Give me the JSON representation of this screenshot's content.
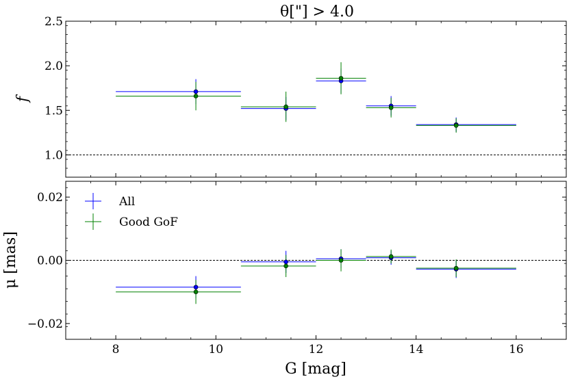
{
  "chart_data": {
    "type": "scatter",
    "title": "θ[\"] > 4.0",
    "xlabel": "G [mag]",
    "xlim": [
      7,
      17
    ],
    "xticks": [
      "8",
      "10",
      "12",
      "14",
      "16"
    ],
    "colors": {
      "All": "#0000ff",
      "Good GoF": "#008000",
      "reference": "#000000"
    },
    "panels": [
      {
        "id": "top",
        "ylabel": "f",
        "ylim": [
          0.75,
          2.5
        ],
        "yticks": [
          "1.0",
          "1.5",
          "2.0",
          "2.5"
        ],
        "reference_line": 1.0,
        "series": [
          {
            "name": "All",
            "points": [
              {
                "x": 9.6,
                "xerr": [
                  8.0,
                  10.5
                ],
                "y": 1.71,
                "yerr": 0.14
              },
              {
                "x": 11.4,
                "xerr": [
                  10.5,
                  12.0
                ],
                "y": 1.52,
                "yerr": 0.13
              },
              {
                "x": 12.5,
                "xerr": [
                  12.0,
                  13.0
                ],
                "y": 1.83,
                "yerr": 0.14
              },
              {
                "x": 13.5,
                "xerr": [
                  13.0,
                  14.0
                ],
                "y": 1.55,
                "yerr": 0.11
              },
              {
                "x": 14.8,
                "xerr": [
                  14.0,
                  16.0
                ],
                "y": 1.34,
                "yerr": 0.08
              }
            ]
          },
          {
            "name": "Good GoF",
            "points": [
              {
                "x": 9.6,
                "xerr": [
                  8.0,
                  10.5
                ],
                "y": 1.66,
                "yerr": 0.16
              },
              {
                "x": 11.4,
                "xerr": [
                  10.5,
                  12.0
                ],
                "y": 1.54,
                "yerr": 0.17
              },
              {
                "x": 12.5,
                "xerr": [
                  12.0,
                  13.0
                ],
                "y": 1.86,
                "yerr": 0.18
              },
              {
                "x": 13.5,
                "xerr": [
                  13.0,
                  14.0
                ],
                "y": 1.53,
                "yerr": 0.11
              },
              {
                "x": 14.8,
                "xerr": [
                  14.0,
                  16.0
                ],
                "y": 1.33,
                "yerr": 0.08
              }
            ]
          }
        ]
      },
      {
        "id": "bottom",
        "ylabel": "μ [mas]",
        "ylim": [
          -0.025,
          0.025
        ],
        "yticks": [
          "−0.02",
          "0.00",
          "0.02"
        ],
        "ytick_values": [
          -0.02,
          0.0,
          0.02
        ],
        "reference_line": 0.0,
        "series": [
          {
            "name": "All",
            "points": [
              {
                "x": 9.6,
                "xerr": [
                  8.0,
                  10.5
                ],
                "y": -0.0085,
                "yerr": 0.0035
              },
              {
                "x": 11.4,
                "xerr": [
                  10.5,
                  12.0
                ],
                "y": -0.0005,
                "yerr": 0.0035
              },
              {
                "x": 12.5,
                "xerr": [
                  12.0,
                  13.0
                ],
                "y": 0.0005,
                "yerr": 0.003
              },
              {
                "x": 13.5,
                "xerr": [
                  13.0,
                  14.0
                ],
                "y": 0.0008,
                "yerr": 0.0022
              },
              {
                "x": 14.8,
                "xerr": [
                  14.0,
                  16.0
                ],
                "y": -0.0028,
                "yerr": 0.0028
              }
            ]
          },
          {
            "name": "Good GoF",
            "points": [
              {
                "x": 9.6,
                "xerr": [
                  8.0,
                  10.5
                ],
                "y": -0.01,
                "yerr": 0.0038
              },
              {
                "x": 11.4,
                "xerr": [
                  10.5,
                  12.0
                ],
                "y": -0.0018,
                "yerr": 0.0035
              },
              {
                "x": 12.5,
                "xerr": [
                  12.0,
                  13.0
                ],
                "y": 0.0,
                "yerr": 0.0035
              },
              {
                "x": 13.5,
                "xerr": [
                  13.0,
                  14.0
                ],
                "y": 0.0012,
                "yerr": 0.0022
              },
              {
                "x": 14.8,
                "xerr": [
                  14.0,
                  16.0
                ],
                "y": -0.0025,
                "yerr": 0.0028
              }
            ]
          }
        ]
      }
    ],
    "legend": {
      "placement": "upper-left of bottom panel",
      "entries": [
        "All",
        "Good GoF"
      ]
    }
  }
}
